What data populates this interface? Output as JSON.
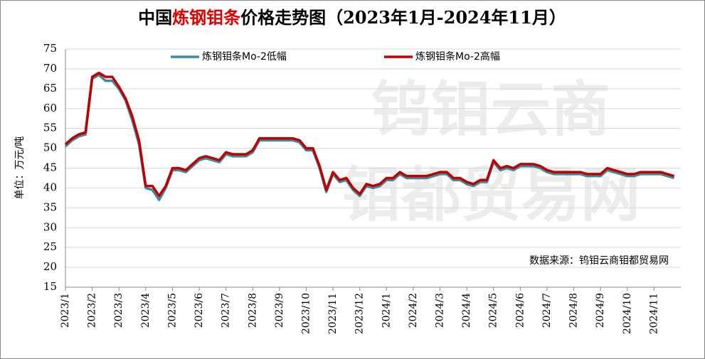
{
  "chart_data": {
    "type": "line",
    "title": [
      "中国",
      "炼钢钼条",
      "价格走势图（2023年1月-2024年11月）"
    ],
    "title_colors": [
      "#000000",
      "#e00000",
      "#000000"
    ],
    "y_label": "单位：万元/吨",
    "source": "数据来源：钨钼云商钼都贸易网",
    "watermark": [
      "钨钼云商",
      "钼都贸易网"
    ],
    "categories": [
      "2023/1",
      null,
      null,
      null,
      "2023/2",
      null,
      null,
      null,
      "2023/3",
      null,
      null,
      null,
      "2023/4",
      null,
      null,
      null,
      "2023/5",
      null,
      null,
      null,
      "2023/6",
      null,
      null,
      null,
      "2023/7",
      null,
      null,
      null,
      "2023/8",
      null,
      null,
      null,
      "2023/9",
      null,
      null,
      null,
      "2023/10",
      null,
      null,
      null,
      "2023/11",
      null,
      null,
      null,
      "2023/12",
      null,
      null,
      null,
      "2024/1",
      null,
      null,
      null,
      "2024/2",
      null,
      null,
      null,
      "2024/3",
      null,
      null,
      null,
      "2024/4",
      null,
      null,
      null,
      "2024/5",
      null,
      null,
      null,
      "2024/6",
      null,
      null,
      null,
      "2024/7",
      null,
      null,
      null,
      "2024/8",
      null,
      null,
      null,
      "2024/9",
      null,
      null,
      null,
      "2024/10",
      null,
      null,
      null,
      "2024/11",
      null,
      null,
      null
    ],
    "series": [
      {
        "name": "炼钢钼条Mo-2低幅",
        "color": "#3d8a9e",
        "values": [
          50.5,
          52,
          53,
          53.5,
          67.5,
          68.5,
          67,
          67,
          65,
          62,
          57,
          51,
          40,
          39.5,
          37,
          40,
          44.5,
          44.5,
          44,
          45.5,
          47,
          47.5,
          47,
          46.5,
          48.5,
          48,
          48,
          48,
          49,
          52,
          52,
          52,
          52,
          52,
          52,
          51.5,
          49.5,
          49.5,
          45,
          39,
          43.5,
          41.5,
          42,
          39.5,
          38,
          40.5,
          40,
          40.5,
          42,
          42,
          43.5,
          42.5,
          42.5,
          42.5,
          42.5,
          43,
          43.5,
          43.5,
          42,
          42,
          41,
          40.5,
          41.5,
          41.5,
          46.5,
          44.5,
          45,
          44.5,
          45.5,
          45.5,
          45.5,
          45,
          44,
          43.5,
          43.5,
          43.5,
          43.5,
          43.5,
          43,
          43,
          43,
          44.5,
          44,
          43.5,
          43,
          43,
          43.5,
          43.5,
          43.5,
          43.5,
          43,
          42.5
        ]
      },
      {
        "name": "炼钢钼条Mo-2高幅",
        "color": "#c00000",
        "values": [
          51,
          52.5,
          53.5,
          54,
          68,
          69,
          68,
          68,
          65.5,
          62.5,
          58,
          52,
          40.5,
          40.5,
          38,
          40.5,
          45,
          45,
          44.5,
          46,
          47.5,
          48,
          47.5,
          47,
          49,
          48.5,
          48.5,
          48.5,
          49.5,
          52.5,
          52.5,
          52.5,
          52.5,
          52.5,
          52.5,
          52,
          50,
          50,
          45.5,
          39.5,
          44,
          42,
          42.5,
          40,
          38.5,
          41,
          40.5,
          41,
          42.5,
          42.5,
          44,
          43,
          43,
          43,
          43,
          43.5,
          44,
          44,
          42.5,
          42.5,
          41.5,
          41,
          42,
          42,
          47,
          45,
          45.5,
          45,
          46,
          46,
          46,
          45.5,
          44.5,
          44,
          44,
          44,
          44,
          44,
          43.5,
          43.5,
          43.5,
          45,
          44.5,
          44,
          43.5,
          43.5,
          44,
          44,
          44,
          44,
          43.5,
          43
        ]
      }
    ],
    "ylim": [
      15,
      75
    ],
    "yticks": [
      15,
      20,
      25,
      30,
      35,
      40,
      45,
      50,
      55,
      60,
      65,
      70,
      75
    ],
    "grid": true
  }
}
